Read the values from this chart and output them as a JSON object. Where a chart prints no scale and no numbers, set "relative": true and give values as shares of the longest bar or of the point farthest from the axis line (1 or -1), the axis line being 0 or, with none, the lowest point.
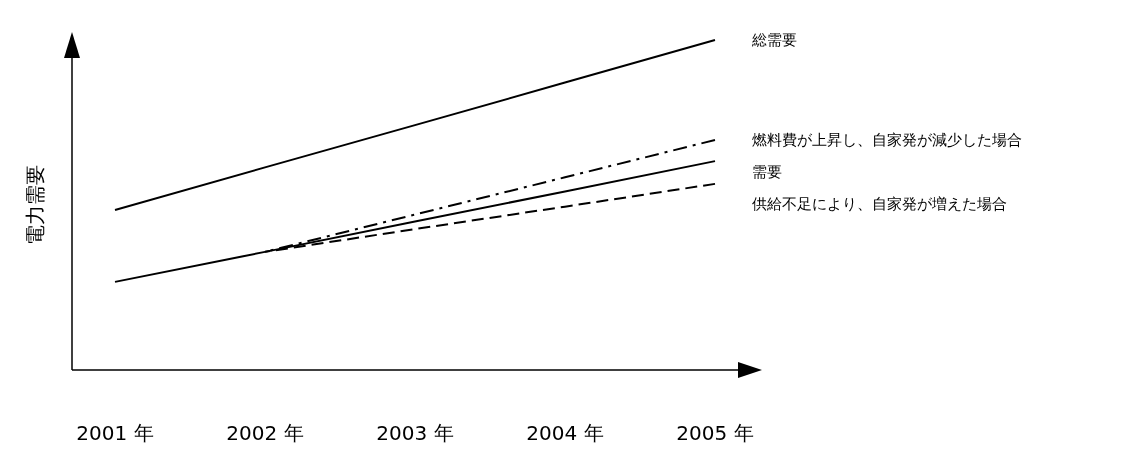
{
  "chart_data": {
    "type": "line",
    "relative": true,
    "ylabel": "電力需要",
    "categories": [
      "2001 年",
      "2002 年",
      "2003 年",
      "2004 年",
      "2005 年"
    ],
    "legend": "right",
    "grid": false,
    "marker": "none",
    "series": [
      {
        "name": "総需要",
        "color": "#000000",
        "line_style": "solid",
        "values": [
          0.485,
          0.614,
          0.742,
          0.871,
          1.0
        ]
      },
      {
        "name": "燃料費が上昇し、自家発が減少した場合",
        "color": "#000000",
        "line_style": "dashdot",
        "values": [
          null,
          0.358,
          0.471,
          0.584,
          0.697
        ]
      },
      {
        "name": "需要",
        "color": "#000000",
        "line_style": "solid",
        "values": [
          0.267,
          0.358,
          0.45,
          0.541,
          0.633
        ]
      },
      {
        "name": "供給不足により、自家発が増えた場合",
        "color": "#000000",
        "line_style": "dashed",
        "values": [
          null,
          0.358,
          0.427,
          0.495,
          0.564
        ]
      }
    ]
  }
}
